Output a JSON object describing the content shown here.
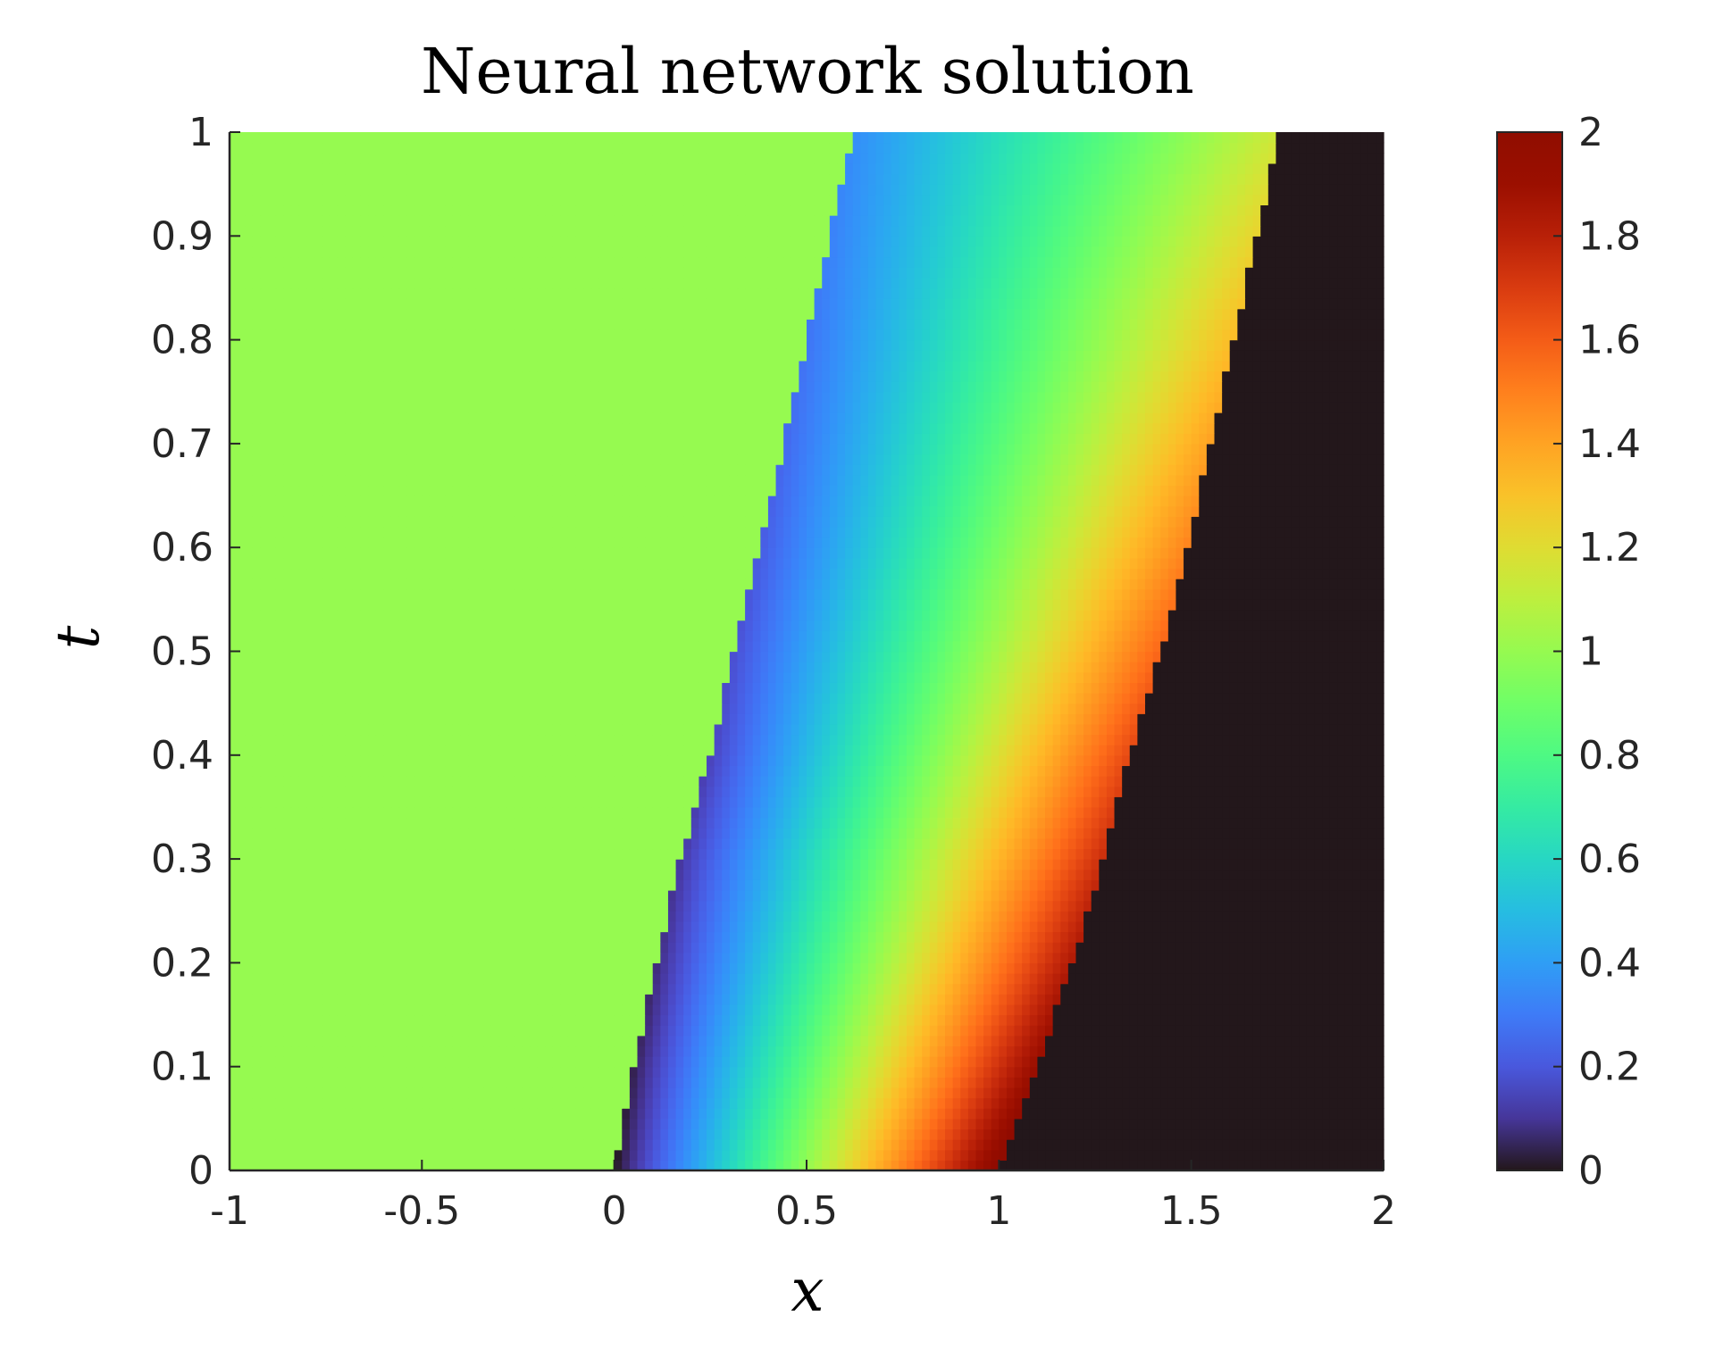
{
  "chart_data": {
    "type": "heatmap",
    "title": "Neural network solution",
    "xlabel": "x",
    "ylabel": "t",
    "xlim": [
      -1,
      2
    ],
    "ylim": [
      0,
      1
    ],
    "x_ticks": [
      "-1",
      "-0.5",
      "0",
      "0.5",
      "1",
      "1.5",
      "2"
    ],
    "y_ticks": [
      "0",
      "0.1",
      "0.2",
      "0.3",
      "0.4",
      "0.5",
      "0.6",
      "0.7",
      "0.8",
      "0.9",
      "1"
    ],
    "colorbar": {
      "colormap": "turbo",
      "range": [
        0,
        2
      ],
      "ticks": [
        "0",
        "0.2",
        "0.4",
        "0.6",
        "0.8",
        "1",
        "1.2",
        "1.4",
        "1.6",
        "1.8",
        "2"
      ]
    },
    "regions": [
      {
        "name": "left-state",
        "value": 1,
        "x_from": -1,
        "x_to_at_t0": 0,
        "x_to_at_t1": 0.62
      },
      {
        "name": "rarefaction",
        "value_from": 0,
        "value_to": 2,
        "x_from_at_t0": 0,
        "x_to_at_t0": 1
      },
      {
        "name": "right-state",
        "value": 0,
        "x_from_at_t0": 1,
        "x_from_at_t1": 1.73
      }
    ],
    "boundaries": {
      "rarefaction_left_t": [
        0,
        0.1,
        0.2,
        0.3,
        0.4,
        0.5,
        0.6,
        0.7,
        0.8,
        0.9,
        1.0
      ],
      "rarefaction_left_x": [
        0.0,
        0.05,
        0.11,
        0.17,
        0.25,
        0.31,
        0.38,
        0.44,
        0.5,
        0.56,
        0.62
      ],
      "shock_x": [
        1.0,
        1.1,
        1.19,
        1.27,
        1.34,
        1.42,
        1.49,
        1.55,
        1.61,
        1.67,
        1.73
      ],
      "inner_value_at_t1": 0.35
    }
  }
}
